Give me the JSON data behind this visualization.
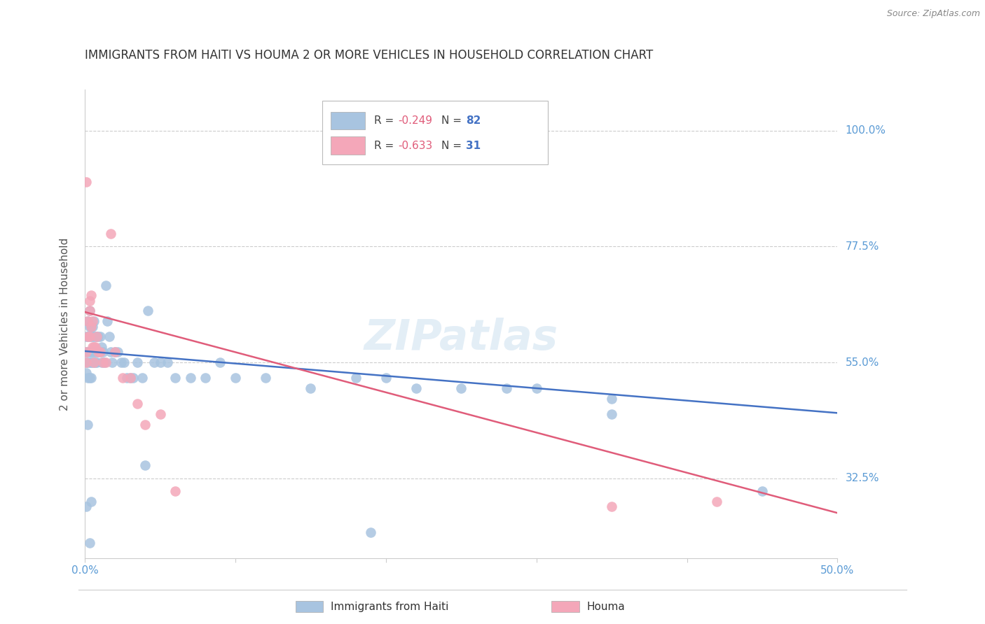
{
  "title": "IMMIGRANTS FROM HAITI VS HOUMA 2 OR MORE VEHICLES IN HOUSEHOLD CORRELATION CHART",
  "source": "Source: ZipAtlas.com",
  "ylabel": "2 or more Vehicles in Household",
  "ytick_labels": [
    "100.0%",
    "77.5%",
    "55.0%",
    "32.5%"
  ],
  "ytick_values": [
    1.0,
    0.775,
    0.55,
    0.325
  ],
  "xlim": [
    0.0,
    0.5
  ],
  "ylim": [
    0.17,
    1.08
  ],
  "blue_color": "#a8c4e0",
  "blue_line_color": "#4472c4",
  "pink_color": "#f4a7b9",
  "pink_line_color": "#e05c7a",
  "blue_scatter_x": [
    0.001,
    0.001,
    0.001,
    0.001,
    0.002,
    0.002,
    0.002,
    0.002,
    0.002,
    0.003,
    0.003,
    0.003,
    0.003,
    0.003,
    0.003,
    0.004,
    0.004,
    0.004,
    0.004,
    0.004,
    0.005,
    0.005,
    0.005,
    0.005,
    0.006,
    0.006,
    0.006,
    0.006,
    0.007,
    0.007,
    0.007,
    0.008,
    0.008,
    0.008,
    0.009,
    0.009,
    0.01,
    0.01,
    0.011,
    0.011,
    0.012,
    0.013,
    0.014,
    0.015,
    0.016,
    0.017,
    0.018,
    0.02,
    0.022,
    0.024,
    0.026,
    0.028,
    0.03,
    0.032,
    0.035,
    0.038,
    0.042,
    0.046,
    0.05,
    0.055,
    0.06,
    0.07,
    0.08,
    0.09,
    0.1,
    0.12,
    0.15,
    0.18,
    0.2,
    0.22,
    0.25,
    0.28,
    0.3,
    0.35,
    0.001,
    0.002,
    0.003,
    0.004,
    0.04,
    0.19,
    0.35,
    0.45
  ],
  "blue_scatter_y": [
    0.6,
    0.57,
    0.55,
    0.53,
    0.63,
    0.6,
    0.57,
    0.55,
    0.52,
    0.65,
    0.62,
    0.6,
    0.57,
    0.55,
    0.52,
    0.62,
    0.6,
    0.57,
    0.55,
    0.52,
    0.62,
    0.6,
    0.57,
    0.55,
    0.63,
    0.6,
    0.57,
    0.55,
    0.6,
    0.57,
    0.55,
    0.6,
    0.57,
    0.55,
    0.6,
    0.57,
    0.6,
    0.57,
    0.58,
    0.55,
    0.57,
    0.55,
    0.7,
    0.63,
    0.6,
    0.57,
    0.55,
    0.57,
    0.57,
    0.55,
    0.55,
    0.52,
    0.52,
    0.52,
    0.55,
    0.52,
    0.65,
    0.55,
    0.55,
    0.55,
    0.52,
    0.52,
    0.52,
    0.55,
    0.52,
    0.52,
    0.5,
    0.52,
    0.52,
    0.5,
    0.5,
    0.5,
    0.5,
    0.48,
    0.27,
    0.43,
    0.2,
    0.28,
    0.35,
    0.22,
    0.45,
    0.3
  ],
  "pink_scatter_x": [
    0.001,
    0.001,
    0.002,
    0.002,
    0.003,
    0.003,
    0.003,
    0.004,
    0.004,
    0.005,
    0.005,
    0.006,
    0.006,
    0.007,
    0.008,
    0.009,
    0.01,
    0.012,
    0.014,
    0.017,
    0.02,
    0.025,
    0.03,
    0.035,
    0.04,
    0.05,
    0.06,
    0.001,
    0.35,
    0.42
  ],
  "pink_scatter_y": [
    0.57,
    0.55,
    0.63,
    0.6,
    0.67,
    0.65,
    0.6,
    0.68,
    0.62,
    0.63,
    0.58,
    0.58,
    0.55,
    0.58,
    0.6,
    0.57,
    0.57,
    0.55,
    0.55,
    0.8,
    0.57,
    0.52,
    0.52,
    0.47,
    0.43,
    0.45,
    0.3,
    0.9,
    0.27,
    0.28
  ],
  "blue_trendline_x": [
    0.0,
    0.5
  ],
  "blue_trendline_y": [
    0.572,
    0.452
  ],
  "pink_trendline_x": [
    0.0,
    0.5
  ],
  "pink_trendline_y": [
    0.648,
    0.258
  ],
  "watermark_text": "ZIPatlas",
  "background_color": "#ffffff",
  "grid_color": "#cccccc",
  "title_color": "#333333",
  "right_axis_color": "#5b9bd5",
  "bottom_axis_label_color": "#5b9bd5",
  "source_color": "#888888",
  "ylabel_color": "#555555"
}
